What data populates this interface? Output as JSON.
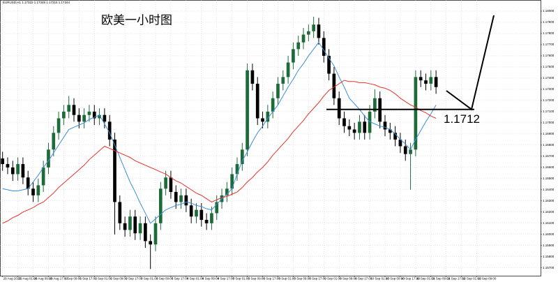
{
  "chart_data": {
    "type": "candlestick",
    "header": "EURUSD,H1  1.17322 1.17349 1.17315 1.17344",
    "title": "欧美一小时图",
    "open": [
      1.1668,
      1.1663,
      1.166,
      1.1654,
      1.1663,
      1.1651,
      1.1641,
      1.1635,
      1.1644,
      1.166,
      1.1676,
      1.1691,
      1.1704,
      1.171,
      1.1716,
      1.1707,
      1.1701,
      1.1707,
      1.171,
      1.1704,
      1.1707,
      1.1701,
      1.1685,
      1.1629,
      1.161,
      1.1604,
      1.1616,
      1.1601,
      1.161,
      1.1594,
      1.1591,
      1.161,
      1.1641,
      1.1651,
      1.1638,
      1.1629,
      1.1635,
      1.1626,
      1.1616,
      1.1622,
      1.1613,
      1.161,
      1.1619,
      1.1629,
      1.1635,
      1.1641,
      1.1654,
      1.1663,
      1.1676,
      1.1747,
      1.1735,
      1.1704,
      1.1701,
      1.171,
      1.1722,
      1.1735,
      1.1741,
      1.1754,
      1.1766,
      1.1772,
      1.1779,
      1.1782,
      1.1788,
      1.1776,
      1.176,
      1.1744,
      1.1722,
      1.1704,
      1.1697,
      1.1694,
      1.1691,
      1.1701,
      1.1691,
      1.171,
      1.1722,
      1.1701,
      1.1694,
      1.1691,
      1.1685,
      1.1679,
      1.1672,
      1.1676,
      1.1741,
      1.1738,
      1.1735,
      1.1741
    ],
    "high": [
      1.1674,
      1.1669,
      1.1666,
      1.1669,
      1.1669,
      1.1657,
      1.1647,
      1.165,
      1.1666,
      1.1682,
      1.1697,
      1.171,
      1.1716,
      1.1724,
      1.1722,
      1.1713,
      1.1713,
      1.1716,
      1.1716,
      1.1713,
      1.1713,
      1.1707,
      1.1691,
      1.1635,
      1.1616,
      1.1622,
      1.1622,
      1.1616,
      1.1616,
      1.16,
      1.1616,
      1.1647,
      1.1657,
      1.1657,
      1.1644,
      1.1641,
      1.1641,
      1.1632,
      1.1628,
      1.1628,
      1.1619,
      1.1625,
      1.1635,
      1.1641,
      1.1647,
      1.166,
      1.1669,
      1.1682,
      1.1753,
      1.1753,
      1.1741,
      1.171,
      1.1716,
      1.1728,
      1.1741,
      1.1747,
      1.176,
      1.1772,
      1.1778,
      1.1785,
      1.1788,
      1.1795,
      1.1794,
      1.1782,
      1.1766,
      1.175,
      1.1728,
      1.171,
      1.1703,
      1.17,
      1.1707,
      1.1707,
      1.1716,
      1.173,
      1.1728,
      1.1707,
      1.17,
      1.1697,
      1.1691,
      1.1685,
      1.1682,
      1.1747,
      1.1747,
      1.1744,
      1.1747,
      1.1747
    ],
    "low": [
      1.1657,
      1.1654,
      1.1648,
      1.1648,
      1.1645,
      1.1635,
      1.1629,
      1.1629,
      1.1638,
      1.1654,
      1.167,
      1.1685,
      1.1698,
      1.1704,
      1.1701,
      1.1695,
      1.1695,
      1.1701,
      1.1698,
      1.1698,
      1.1695,
      1.1679,
      1.16,
      1.1604,
      1.1598,
      1.1598,
      1.1595,
      1.1595,
      1.1588,
      1.1569,
      1.1585,
      1.1604,
      1.1635,
      1.1632,
      1.1623,
      1.1623,
      1.162,
      1.161,
      1.161,
      1.1607,
      1.1604,
      1.1604,
      1.1613,
      1.1623,
      1.1629,
      1.1635,
      1.1648,
      1.1657,
      1.167,
      1.1729,
      1.1698,
      1.1695,
      1.1695,
      1.1704,
      1.1716,
      1.1729,
      1.1735,
      1.1748,
      1.176,
      1.1766,
      1.1773,
      1.1776,
      1.177,
      1.1754,
      1.1738,
      1.1716,
      1.1698,
      1.1691,
      1.1688,
      1.1685,
      1.1685,
      1.1685,
      1.1685,
      1.1704,
      1.1695,
      1.1688,
      1.1685,
      1.1679,
      1.1673,
      1.1666,
      1.164,
      1.167,
      1.1732,
      1.1729,
      1.1729,
      1.1726
    ],
    "close": [
      1.1663,
      1.166,
      1.1654,
      1.1663,
      1.1651,
      1.1641,
      1.1635,
      1.1644,
      1.166,
      1.1676,
      1.1691,
      1.1704,
      1.171,
      1.1716,
      1.1707,
      1.1701,
      1.1707,
      1.171,
      1.1704,
      1.1707,
      1.1701,
      1.1685,
      1.1629,
      1.161,
      1.1604,
      1.1616,
      1.1601,
      1.161,
      1.1594,
      1.1591,
      1.161,
      1.1641,
      1.1651,
      1.1638,
      1.1629,
      1.1635,
      1.1626,
      1.1616,
      1.1622,
      1.1613,
      1.161,
      1.1619,
      1.1629,
      1.1635,
      1.1641,
      1.1654,
      1.1663,
      1.1676,
      1.1747,
      1.1735,
      1.1704,
      1.1701,
      1.171,
      1.1722,
      1.1735,
      1.1741,
      1.1754,
      1.1766,
      1.1772,
      1.1779,
      1.1782,
      1.1788,
      1.1776,
      1.176,
      1.1744,
      1.1722,
      1.1704,
      1.1697,
      1.1694,
      1.1691,
      1.1701,
      1.1691,
      1.171,
      1.1722,
      1.1701,
      1.1694,
      1.1691,
      1.1685,
      1.1679,
      1.1672,
      1.1676,
      1.1741,
      1.1738,
      1.1735,
      1.1741,
      1.1732
    ],
    "bull_color": "#1e6b3a",
    "bear_color": "#000000",
    "series": [
      {
        "color": "#3a8fd6",
        "values": [
          1.1641,
          1.164,
          1.1639,
          1.1639,
          1.164,
          1.1641,
          1.1647,
          1.1653,
          1.166,
          1.1666,
          1.1673,
          1.168,
          1.1687,
          1.1694,
          1.1696,
          1.1698,
          1.17,
          1.1703,
          1.1705,
          1.1707,
          1.1699,
          1.1691,
          1.168,
          1.1669,
          1.1658,
          1.1647,
          1.1638,
          1.1628,
          1.1619,
          1.161,
          1.1614,
          1.1618,
          1.1622,
          1.1624,
          1.1626,
          1.1627,
          1.1629,
          1.1628,
          1.1626,
          1.1625,
          1.1623,
          1.1622,
          1.1627,
          1.1632,
          1.1636,
          1.1641,
          1.1654,
          1.1666,
          1.1674,
          1.1683,
          1.1691,
          1.1697,
          1.1704,
          1.171,
          1.1716,
          1.1724,
          1.1732,
          1.1739,
          1.1747,
          1.1753,
          1.176,
          1.1766,
          1.1772,
          1.1765,
          1.1758,
          1.1751,
          1.1741,
          1.1732,
          1.1722,
          1.1717,
          1.1712,
          1.1706,
          1.1701,
          1.1699,
          1.1697,
          1.1696,
          1.1694,
          1.169,
          1.1685,
          1.1681,
          1.1676,
          1.1685,
          1.1693,
          1.1701,
          1.1708,
          1.1716
        ]
      },
      {
        "color": "#e8312a",
        "values": [
          1.161,
          1.1612,
          1.1615,
          1.1617,
          1.162,
          1.1622,
          1.1624,
          1.1627,
          1.1629,
          1.1633,
          1.1637,
          1.1642,
          1.1646,
          1.165,
          1.1654,
          1.1658,
          1.1662,
          1.1667,
          1.1671,
          1.1675,
          1.1679,
          1.1677,
          1.1675,
          1.1673,
          1.1671,
          1.1669,
          1.1666,
          1.1664,
          1.1662,
          1.166,
          1.1658,
          1.1656,
          1.1654,
          1.1651,
          1.1648,
          1.1646,
          1.1643,
          1.164,
          1.1637,
          1.1635,
          1.1632,
          1.1629,
          1.1631,
          1.1633,
          1.1634,
          1.1636,
          1.1638,
          1.1642,
          1.1647,
          1.1651,
          1.1656,
          1.166,
          1.1665,
          1.1671,
          1.1676,
          1.1681,
          1.1686,
          1.1692,
          1.1697,
          1.1702,
          1.1708,
          1.1713,
          1.1718,
          1.1724,
          1.1729,
          1.1732,
          1.1735,
          1.1738,
          1.1737,
          1.1737,
          1.1736,
          1.1736,
          1.1735,
          1.1734,
          1.1732,
          1.1731,
          1.1729,
          1.1726,
          1.1722,
          1.1719,
          1.1716,
          1.1714,
          1.1711,
          1.1709,
          1.1706,
          1.1704
        ]
      }
    ],
    "hline": {
      "value": 1.1712
    },
    "xlim": [
      -0.5,
      105.5
    ],
    "ylim": [
      1.1563,
      1.181
    ],
    "xticks": [
      {
        "value": 0,
        "label": "28 Aug 2025"
      },
      {
        "value": 3,
        "label": "29 Aug 01:00"
      },
      {
        "value": 6,
        "label": "29 Aug 09:00"
      },
      {
        "value": 9,
        "label": "29 Aug 17:00"
      },
      {
        "value": 12,
        "label": "1 Sep 09:00"
      },
      {
        "value": 15,
        "label": "1 Sep 17:00"
      },
      {
        "value": 18,
        "label": "2 Sep 01:00"
      },
      {
        "value": 21,
        "label": "2 Sep 09:00"
      },
      {
        "value": 24,
        "label": "2 Sep 17:00"
      },
      {
        "value": 27,
        "label": "3 Sep 01:00"
      },
      {
        "value": 30,
        "label": "3 Sep 09:00"
      },
      {
        "value": 33,
        "label": "3 Sep 17:00"
      },
      {
        "value": 36,
        "label": "4 Sep 01:00"
      },
      {
        "value": 39,
        "label": "4 Sep 09:00"
      },
      {
        "value": 42,
        "label": "4 Sep 17:00"
      },
      {
        "value": 45,
        "label": "5 Sep 01:00"
      },
      {
        "value": 48,
        "label": "5 Sep 09:00"
      },
      {
        "value": 51,
        "label": "5 Sep 17:00"
      },
      {
        "value": 54,
        "label": "8 Sep 01:00"
      },
      {
        "value": 57,
        "label": "8 Sep 09:00"
      },
      {
        "value": 60,
        "label": "8 Sep 17:00"
      },
      {
        "value": 63,
        "label": "9 Sep 01:00"
      },
      {
        "value": 66,
        "label": "9 Sep 09:00"
      },
      {
        "value": 69,
        "label": "9 Sep 17:00"
      },
      {
        "value": 72,
        "label": "10 Sep 01:00"
      },
      {
        "value": 75,
        "label": "10 Sep 09:00"
      },
      {
        "value": 78,
        "label": "10 Sep 17:00"
      },
      {
        "value": 81,
        "label": "11 Sep 01:00"
      },
      {
        "value": 84,
        "label": "11 Sep 09:00"
      },
      {
        "value": 87,
        "label": "11 Sep 17:00"
      },
      {
        "value": 90,
        "label": "12 Sep 01:00"
      },
      {
        "value": 93,
        "label": "12 Sep 09:00"
      }
    ],
    "yticks": [
      {
        "value": 1.157,
        "label": "1.15700"
      },
      {
        "value": 1.158,
        "label": "1.15800"
      },
      {
        "value": 1.159,
        "label": "1.15900"
      },
      {
        "value": 1.16,
        "label": "1.16000"
      },
      {
        "value": 1.161,
        "label": "1.16100"
      },
      {
        "value": 1.162,
        "label": "1.16200"
      },
      {
        "value": 1.163,
        "label": "1.16300"
      },
      {
        "value": 1.164,
        "label": "1.16400"
      },
      {
        "value": 1.165,
        "label": "1.16500"
      },
      {
        "value": 1.166,
        "label": "1.16600"
      },
      {
        "value": 1.167,
        "label": "1.16700"
      },
      {
        "value": 1.168,
        "label": "1.16800"
      },
      {
        "value": 1.169,
        "label": "1.16900"
      },
      {
        "value": 1.17,
        "label": "1.17000"
      },
      {
        "value": 1.171,
        "label": "1.17100"
      },
      {
        "value": 1.172,
        "label": "1.17200"
      },
      {
        "value": 1.173,
        "label": "1.17300"
      },
      {
        "value": 1.174,
        "label": "1.17400"
      },
      {
        "value": 1.175,
        "label": "1.17500"
      },
      {
        "value": 1.176,
        "label": "1.17600"
      },
      {
        "value": 1.177,
        "label": "1.17700"
      },
      {
        "value": 1.178,
        "label": "1.17800"
      },
      {
        "value": 1.179,
        "label": "1.17900"
      },
      {
        "value": 1.18,
        "label": "1.18000"
      }
    ],
    "grid": true
  }
}
